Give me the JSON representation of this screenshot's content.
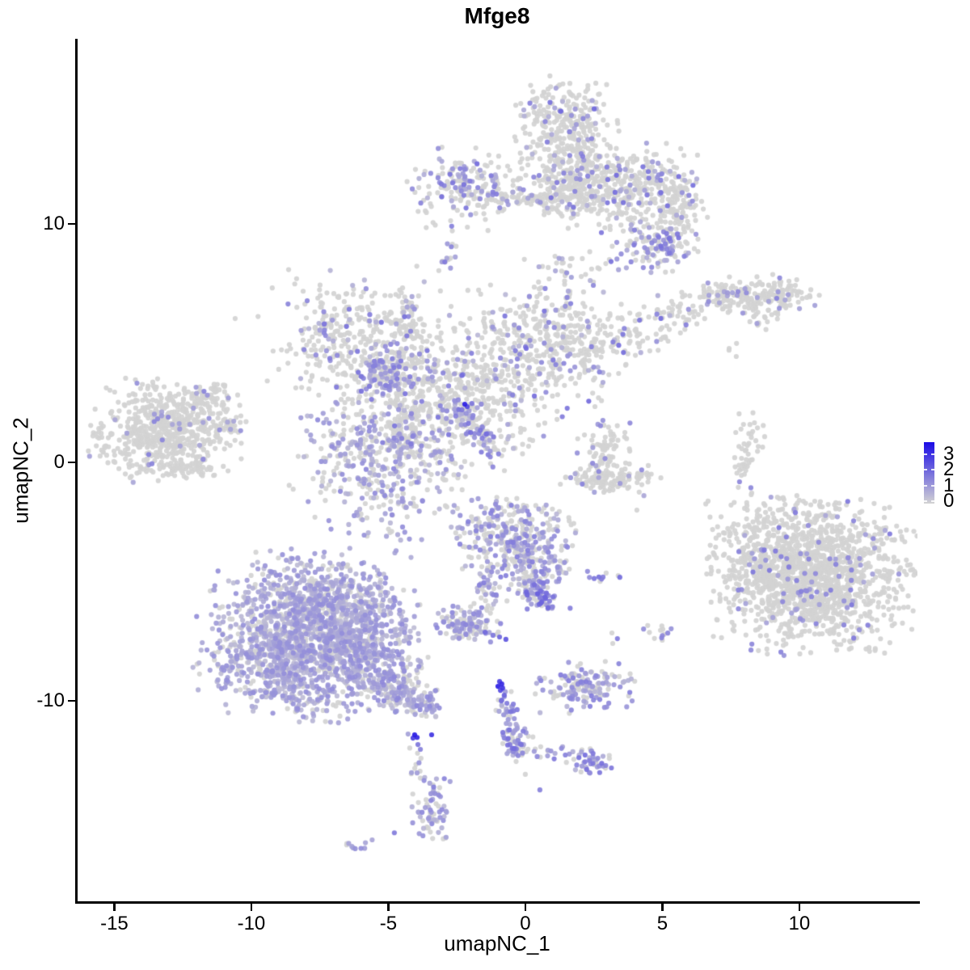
{
  "title": "Mfge8",
  "axes": {
    "x_label": "umapNC_1",
    "y_label": "umapNC_2"
  },
  "chart_data": {
    "type": "scatter",
    "title": "Mfge8",
    "xlabel": "umapNC_1",
    "ylabel": "umapNC_2",
    "xlim": [
      -16.37,
      14.31
    ],
    "ylim": [
      -18.47,
      17.76
    ],
    "x_ticks": [
      -15,
      -10,
      -5,
      0,
      5,
      10
    ],
    "y_ticks": [
      -10,
      0,
      10
    ],
    "grid": false,
    "legend_position": "right",
    "point_radius_px": 3.1,
    "seed": 1337,
    "colormap": {
      "low": "#D3D3D3",
      "high": "#1A0BE6",
      "vmax": 3.7
    },
    "legend": {
      "tick_labels": [
        "3",
        "2",
        "1",
        "0"
      ],
      "tick_values": [
        3,
        2,
        1,
        0
      ],
      "value_range": [
        -0.16,
        3.78
      ],
      "low_color": "#D3D3D3",
      "high_color": "#1A0BE6"
    },
    "clusters": [
      {
        "name": "top-large",
        "frac": 0.13,
        "vmin": 0.6,
        "vmax": 2.0,
        "blobs": [
          [
            1.47,
            14.0,
            0.82,
            0.95,
            300
          ],
          [
            3.54,
            11.53,
            1.33,
            0.81,
            450
          ],
          [
            1.47,
            11.59,
            0.6,
            0.6,
            120
          ],
          [
            5.55,
            10.51,
            0.4,
            0.75,
            80
          ],
          [
            1.77,
            8.03,
            0.8,
            0.45,
            35
          ],
          [
            0.35,
            11.05,
            0.8,
            0.12,
            45
          ]
        ]
      },
      {
        "name": "top-large-tail-dense",
        "frac": 0.4,
        "vmin": 0.7,
        "vmax": 1.8,
        "blobs": [
          [
            4.78,
            9.12,
            0.75,
            0.5,
            130
          ]
        ]
      },
      {
        "name": "top-left-small",
        "frac": 0.3,
        "vmin": 0.6,
        "vmax": 1.9,
        "blobs": [
          [
            -2.06,
            11.53,
            1.0,
            0.78,
            210
          ],
          [
            -2.86,
            8.78,
            0.18,
            0.28,
            13
          ]
        ]
      },
      {
        "name": "central-complex",
        "frac": 0.15,
        "vmin": 0.5,
        "vmax": 1.9,
        "blobs": [
          [
            -6.28,
            5.15,
            1.5,
            1.3,
            340
          ],
          [
            -2.86,
            2.88,
            1.75,
            1.5,
            560
          ],
          [
            -4.22,
            5.9,
            0.28,
            0.8,
            55
          ],
          [
            0.77,
            4.88,
            1.4,
            1.25,
            430
          ],
          [
            3.69,
            5.15,
            0.7,
            0.35,
            50
          ],
          [
            5.4,
            6.17,
            0.8,
            0.35,
            55
          ],
          [
            -4.42,
            1.36,
            0.5,
            0.5,
            70
          ]
        ]
      },
      {
        "name": "central-purple-streak",
        "frac": 0.55,
        "vmin": 0.7,
        "vmax": 1.8,
        "blobs": [
          [
            -5.1,
            3.86,
            0.55,
            0.5,
            130
          ]
        ]
      },
      {
        "name": "central-lower-blob",
        "frac": 0.5,
        "vmin": 0.5,
        "vmax": 1.4,
        "blobs": [
          [
            -5.22,
            0.14,
            1.45,
            1.45,
            430
          ]
        ]
      },
      {
        "name": "central-diagonal-tail",
        "frac": 0.65,
        "vmin": 0.7,
        "vmax": 1.9,
        "blobs": [
          [
            -2.36,
            2.03,
            0.22,
            0.22,
            18
          ],
          [
            -1.83,
            1.39,
            0.22,
            0.22,
            18
          ],
          [
            -1.36,
            0.78,
            0.25,
            0.25,
            20
          ]
        ]
      },
      {
        "name": "left-cluster",
        "frac": 0.05,
        "vmin": 0.8,
        "vmax": 1.6,
        "blobs": [
          [
            -13.13,
            1.36,
            1.2,
            0.92,
            620
          ],
          [
            -11.71,
            2.71,
            0.42,
            0.26,
            40
          ],
          [
            -11.21,
            3.12,
            0.2,
            0.15,
            12
          ],
          [
            -10.86,
            1.49,
            0.3,
            0.18,
            22
          ],
          [
            -12.24,
            -0.2,
            0.5,
            0.22,
            45
          ]
        ]
      },
      {
        "name": "right-elongated",
        "frac": 0.08,
        "vmin": 0.8,
        "vmax": 1.6,
        "blobs": [
          [
            7.37,
            6.92,
            0.8,
            0.28,
            110
          ],
          [
            9.09,
            6.98,
            0.75,
            0.38,
            115
          ],
          [
            8.67,
            5.86,
            0.28,
            0.22,
            13
          ],
          [
            7.7,
            4.75,
            0.18,
            0.18,
            4
          ]
        ]
      },
      {
        "name": "right-vertical-strand",
        "frac": 0.04,
        "vmin": 1.2,
        "vmax": 1.4,
        "blobs": [
          [
            8.14,
            0.88,
            0.26,
            0.5,
            28
          ],
          [
            7.88,
            -0.37,
            0.18,
            0.45,
            20
          ]
        ]
      },
      {
        "name": "right-large",
        "frac": 0.055,
        "vmin": 0.8,
        "vmax": 1.7,
        "blobs": [
          [
            10.47,
            -4.75,
            1.62,
            1.4,
            1500
          ],
          [
            8.32,
            -2.71,
            0.7,
            0.7,
            40
          ],
          [
            8.32,
            -4.34,
            0.45,
            0.6,
            70
          ]
        ]
      },
      {
        "name": "bottom-left-large-purple",
        "frac": 0.78,
        "vmin": 0.4,
        "vmax": 1.3,
        "blobs": [
          [
            -7.67,
            -5.86,
            1.6,
            0.95,
            750
          ],
          [
            -8.79,
            -8.14,
            1.45,
            1.0,
            750
          ],
          [
            -6.19,
            -7.73,
            1.15,
            0.9,
            480
          ],
          [
            -7.37,
            -10.17,
            1.1,
            0.42,
            70
          ]
        ]
      },
      {
        "name": "bottom-left-tail",
        "frac": 0.68,
        "vmin": 0.4,
        "vmax": 1.4,
        "blobs": [
          [
            -4.87,
            -9.25,
            0.55,
            0.45,
            130
          ],
          [
            -3.83,
            -10.17,
            0.4,
            0.32,
            70
          ]
        ]
      },
      {
        "name": "bottom-center-purple",
        "frac": 0.55,
        "vmin": 0.5,
        "vmax": 1.6,
        "blobs": [
          [
            -0.59,
            -2.98,
            1.05,
            0.75,
            280
          ],
          [
            0.21,
            -4.54,
            0.7,
            0.7,
            170
          ],
          [
            -1.47,
            -5.69,
            0.28,
            0.5,
            35
          ]
        ]
      },
      {
        "name": "bottom-center-tip",
        "frac": 0.75,
        "vmin": 0.8,
        "vmax": 2.2,
        "blobs": [
          [
            0.53,
            -5.63,
            0.3,
            0.32,
            55
          ]
        ]
      },
      {
        "name": "bottom-center-small",
        "frac": 0.65,
        "vmin": 0.5,
        "vmax": 1.5,
        "blobs": [
          [
            -2.12,
            -6.81,
            0.55,
            0.33,
            110
          ]
        ]
      },
      {
        "name": "center-right-small",
        "frac": 0.08,
        "vmin": 0.8,
        "vmax": 1.5,
        "blobs": [
          [
            3.01,
            0.68,
            0.48,
            0.42,
            65
          ],
          [
            3.13,
            -0.71,
            0.8,
            0.3,
            130
          ]
        ]
      },
      {
        "name": "small-purple-dash",
        "frac": 0.85,
        "vmin": 1.2,
        "vmax": 2.0,
        "blobs": [
          [
            2.8,
            -4.88,
            0.3,
            0.13,
            9
          ]
        ]
      },
      {
        "name": "small-right-dots",
        "frac": 0.25,
        "vmin": 1.0,
        "vmax": 1.6,
        "blobs": [
          [
            4.96,
            -7.02,
            0.38,
            0.25,
            13
          ]
        ]
      },
      {
        "name": "bottom-right-small",
        "frac": 0.5,
        "vmin": 0.5,
        "vmax": 1.6,
        "blobs": [
          [
            2.3,
            -9.42,
            0.85,
            0.5,
            150
          ]
        ]
      },
      {
        "name": "bottom-branching-strand",
        "frac": 0.7,
        "vmin": 0.6,
        "vmax": 1.9,
        "blobs": [
          [
            -0.74,
            -10.17,
            0.16,
            0.3,
            16
          ],
          [
            -0.53,
            -10.88,
            0.16,
            0.3,
            16
          ],
          [
            -0.35,
            -11.66,
            0.3,
            0.38,
            55
          ],
          [
            1.12,
            -12.14,
            0.55,
            0.16,
            15
          ],
          [
            2.3,
            -12.51,
            0.38,
            0.3,
            45
          ]
        ]
      },
      {
        "name": "bottom-thread",
        "frac": 0.25,
        "vmin": 0.8,
        "vmax": 1.2,
        "blobs": [
          [
            -3.95,
            -12.71,
            0.12,
            0.5,
            7
          ]
        ]
      },
      {
        "name": "bottom-blob",
        "frac": 0.65,
        "vmin": 0.5,
        "vmax": 1.5,
        "blobs": [
          [
            -3.45,
            -14.47,
            0.32,
            0.72,
            70
          ]
        ]
      },
      {
        "name": "bottom-dash",
        "frac": 0.8,
        "vmin": 0.8,
        "vmax": 1.6,
        "blobs": [
          [
            -6.02,
            -16.0,
            0.28,
            0.12,
            10
          ]
        ]
      }
    ],
    "extra_points": [
      [
        -2.21,
        2.44,
        3.3
      ],
      [
        -2.12,
        2.34,
        2.5
      ],
      [
        -1.95,
        2.47,
        1.7
      ],
      [
        -4.04,
        -11.42,
        3.4
      ],
      [
        -3.95,
        -11.53,
        3.1
      ],
      [
        -4.1,
        -11.56,
        2.7
      ],
      [
        -3.42,
        -11.42,
        2.9
      ],
      [
        -4.28,
        -11.39,
        0.9
      ],
      [
        -3.92,
        -11.83,
        1.7
      ],
      [
        -3.83,
        -12.03,
        1.5
      ],
      [
        -3.81,
        -12.41,
        0
      ],
      [
        -0.94,
        -9.19,
        2.7
      ],
      [
        -0.86,
        -9.29,
        3.1
      ],
      [
        -1.0,
        -9.39,
        3.3
      ],
      [
        -0.83,
        -9.46,
        2.9
      ],
      [
        -0.91,
        -9.56,
        2.5
      ],
      [
        -0.77,
        -9.76,
        2.0
      ],
      [
        -0.86,
        -9.97,
        1.8
      ],
      [
        0.53,
        -13.73,
        1.5
      ],
      [
        0.0,
        -13.08,
        0
      ],
      [
        -4.78,
        -15.53,
        1.6
      ],
      [
        -10.59,
        6.03,
        0
      ],
      [
        2.83,
        1.76,
        1.2
      ],
      [
        2.54,
        2.34,
        0
      ],
      [
        4.07,
        -2.0,
        0
      ],
      [
        8.08,
        -1.69,
        0
      ],
      [
        7.61,
        -2.58,
        0
      ],
      [
        -3.1,
        7.19,
        0
      ],
      [
        -2.71,
        6.54,
        0
      ],
      [
        -1.47,
        -7.12,
        1.9
      ],
      [
        -1.18,
        -7.25,
        1.7
      ],
      [
        -0.94,
        -7.32,
        2.0
      ],
      [
        -0.71,
        -7.42,
        2.3
      ],
      [
        -1.27,
        -7.53,
        1.2
      ],
      [
        3.16,
        -7.15,
        0
      ],
      [
        3.36,
        -7.39,
        1.6
      ],
      [
        3.19,
        -7.59,
        0
      ],
      [
        3.39,
        -4.75,
        0
      ]
    ]
  }
}
